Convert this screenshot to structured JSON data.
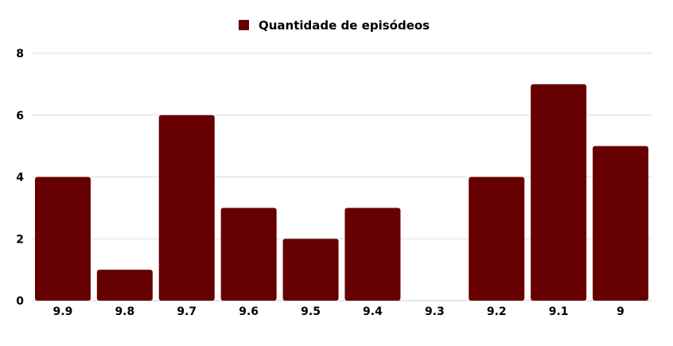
{
  "chart_data": {
    "type": "bar",
    "categories": [
      "9.9",
      "9.8",
      "9.7",
      "9.6",
      "9.5",
      "9.4",
      "9.3",
      "9.2",
      "9.1",
      "9"
    ],
    "series": [
      {
        "name": "Quantidade de episódeos",
        "values": [
          4,
          1,
          6,
          3,
          2,
          3,
          0,
          4,
          7,
          5
        ]
      }
    ],
    "ylim": [
      0,
      8
    ],
    "yticks": [
      "0",
      "2",
      "4",
      "6",
      "8"
    ],
    "grid": true,
    "legend": "top-center",
    "colors": {
      "bar": "#660000",
      "grid": "#dddddd"
    }
  }
}
